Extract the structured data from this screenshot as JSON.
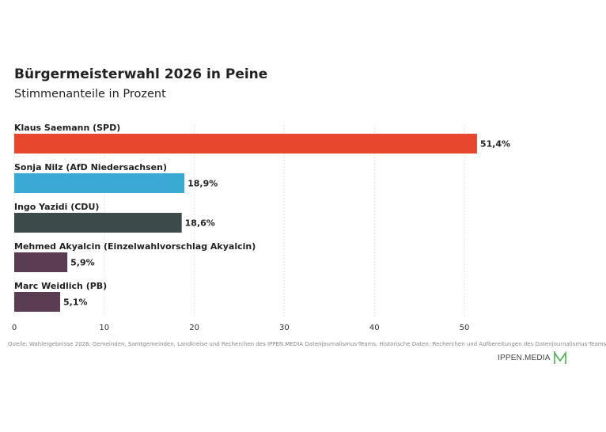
{
  "header": {
    "title": "Bürgermeisterwahl 2026 in Peine",
    "subtitle": "Stimmenanteile in Prozent"
  },
  "chart_data": {
    "type": "bar",
    "orientation": "horizontal",
    "categories": [
      "Klaus Saemann (SPD)",
      "Sonja Nilz (AfD Niedersachsen)",
      "Ingo Yazidi (CDU)",
      "Mehmed Akyalcin (Einzelwahlvorschlag Akyalcin)",
      "Marc Weidlich (PB)"
    ],
    "values": [
      51.4,
      18.9,
      18.6,
      5.9,
      5.1
    ],
    "value_labels": [
      "51,4%",
      "18,9%",
      "18,6%",
      "5,9%",
      "5,1%"
    ],
    "colors": [
      "#e6472d",
      "#3aa9d3",
      "#3d4a4a",
      "#5a3d52",
      "#5a3d52"
    ],
    "xlim": [
      0,
      60
    ],
    "xticks": [
      0,
      10,
      20,
      30,
      40,
      50
    ],
    "grid": true,
    "title": "Bürgermeisterwahl 2026 in Peine",
    "subtitle": "Stimmenanteile in Prozent"
  },
  "footer": {
    "source": "Quelle: Wahlergebnisse 2026: Gemeinden, Samtgemeinden, Landkreise und Recherchen des IPPEN.MEDIA Datenjournalismus-Teams. Historische Daten: Recherchen und Aufbereitungen des Datenjournalismus-Teams",
    "brand": "IPPEN.MEDIA",
    "brand_color": "#4caf50"
  }
}
